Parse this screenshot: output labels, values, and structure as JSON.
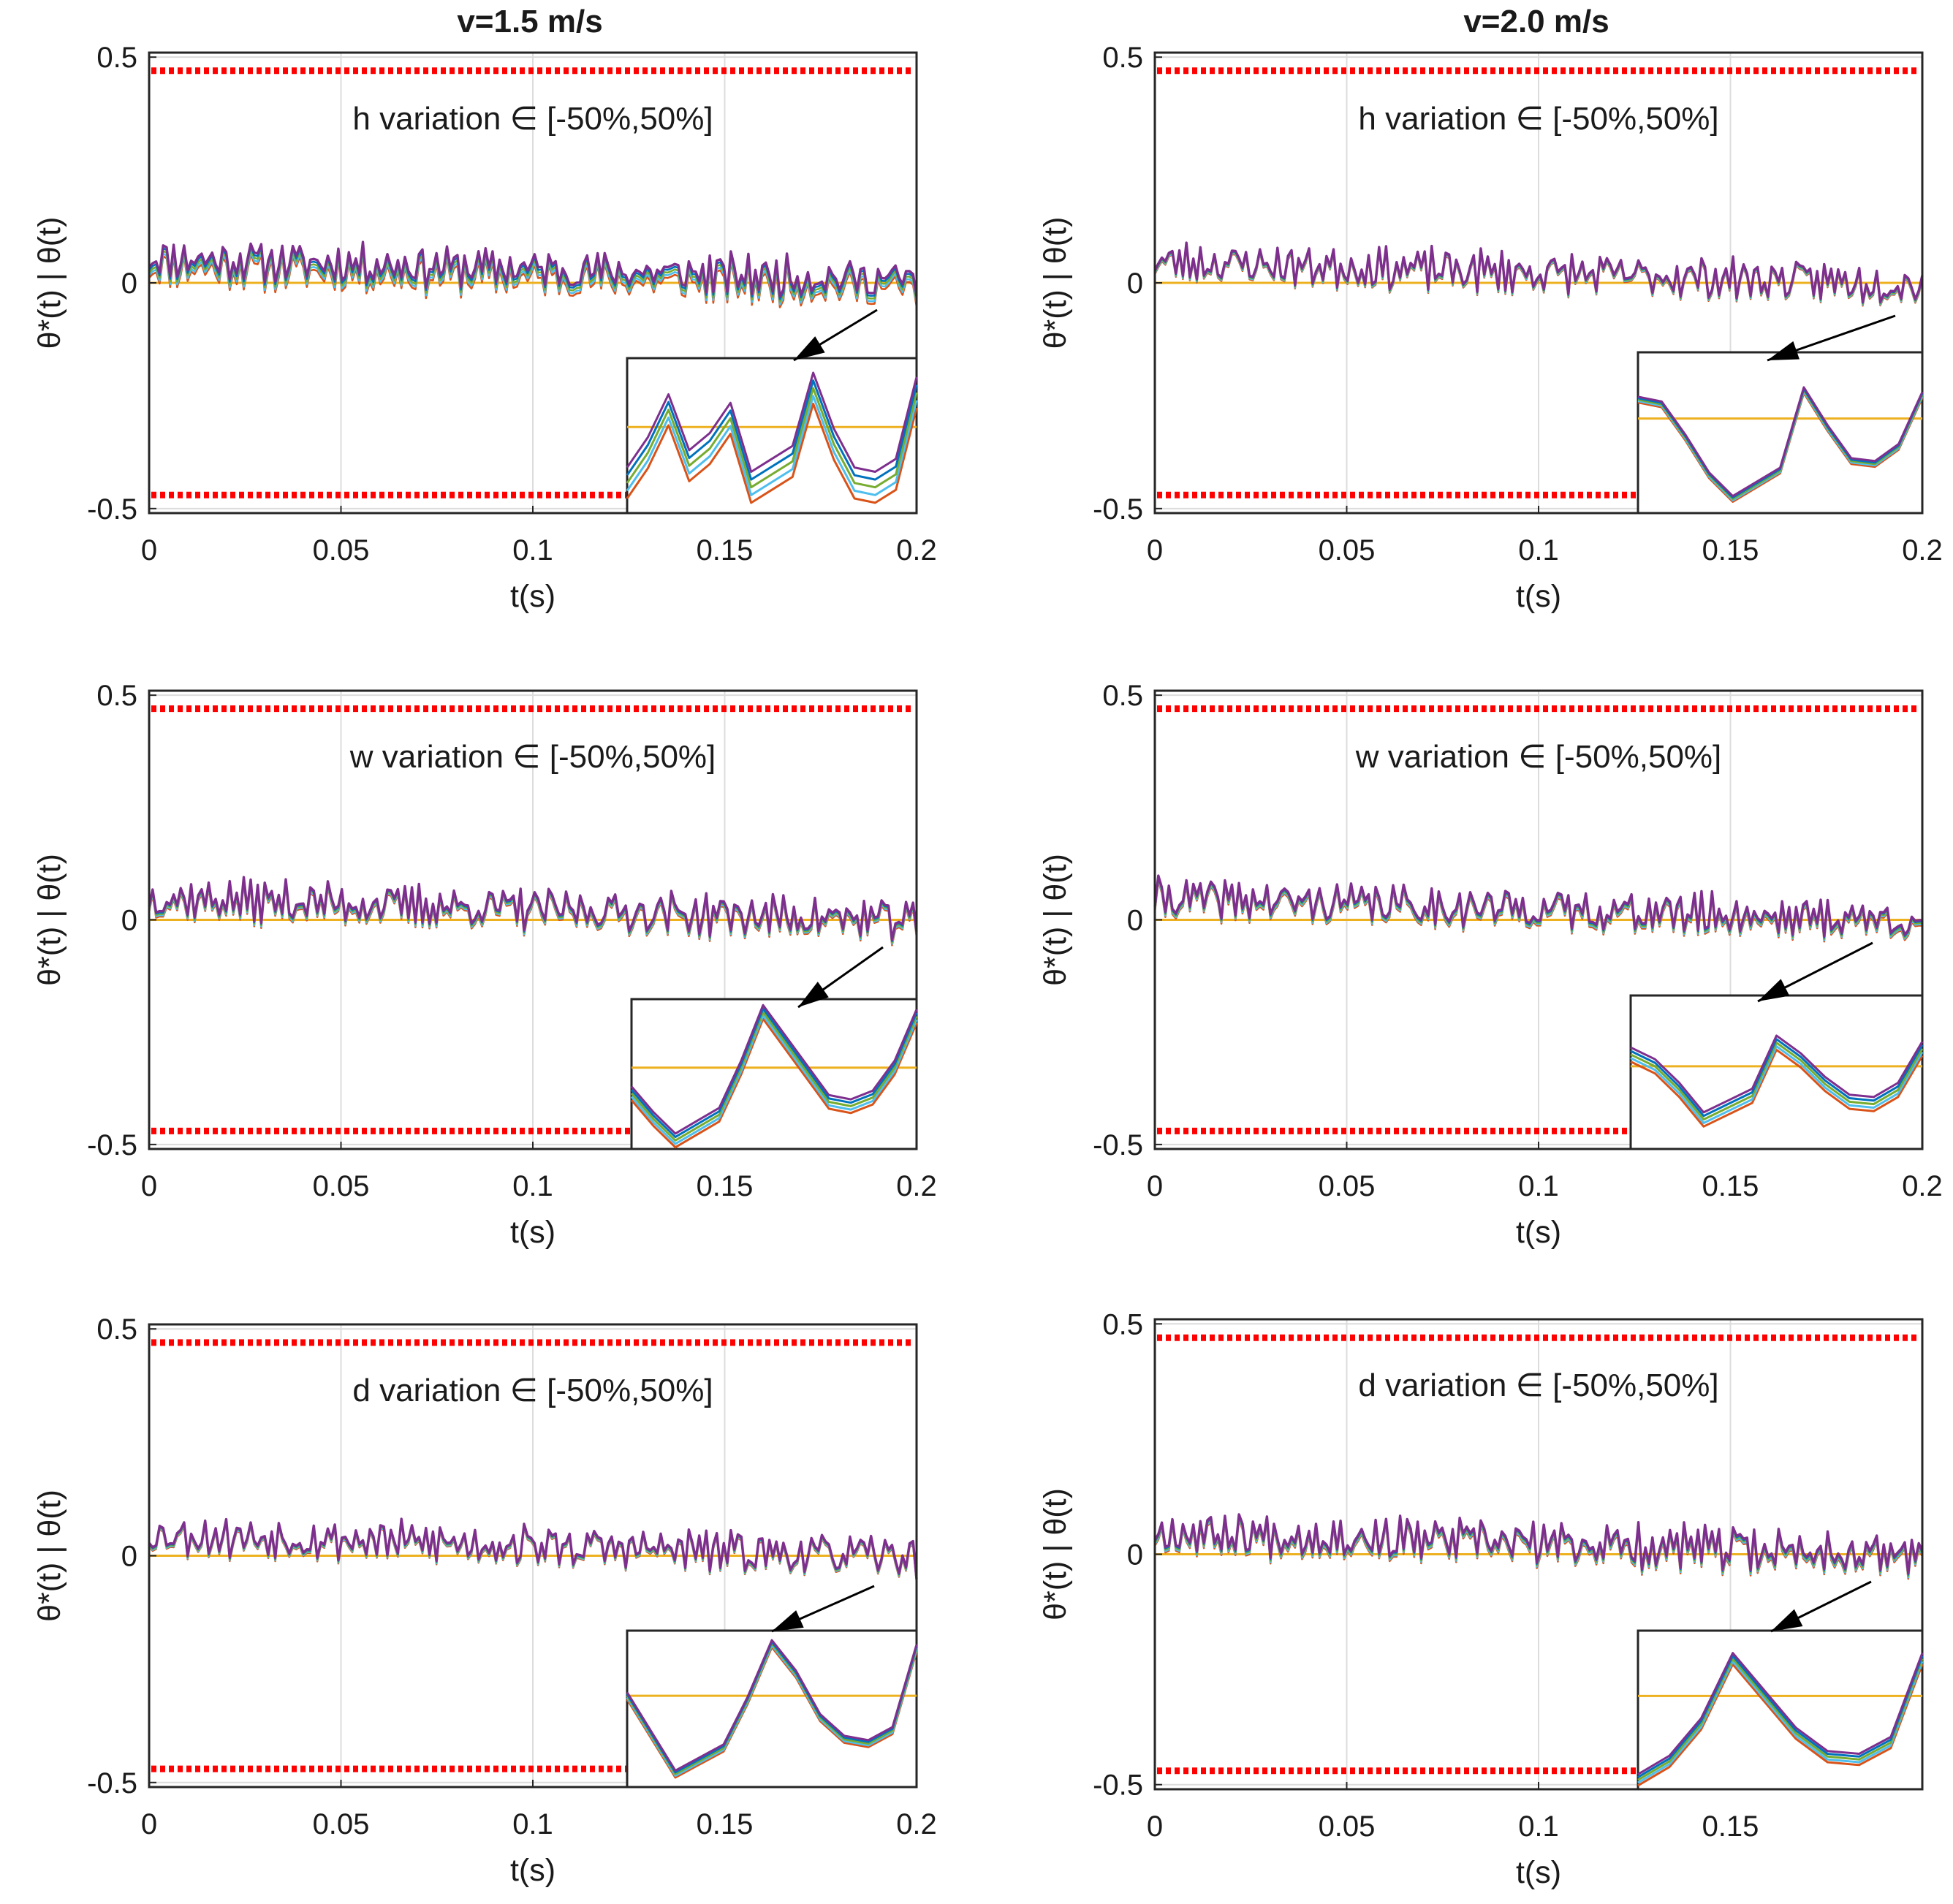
{
  "figure": {
    "column_titles": [
      "v=1.5 m/s",
      "v=2.0 m/s"
    ],
    "colors": {
      "limit": "#ff0000",
      "reference": "#edb120",
      "grid": "#dcdcdc",
      "axes": "#262626",
      "arrow": "#000000",
      "series": [
        "#d95319",
        "#4dbeee",
        "#77ac30",
        "#0072bd",
        "#7e2f8e"
      ]
    }
  },
  "chart_data": [
    {
      "type": "line",
      "panel": "v1.5-h",
      "column": "v=1.5 m/s",
      "annotation": "h variation ∈ [-50%,50%]",
      "xlabel": "t(s)",
      "ylabel": "θ*(t) | θ(t)",
      "xlim": [
        0,
        0.2
      ],
      "ylim": [
        -0.51,
        0.51
      ],
      "xticks": [
        0,
        0.05,
        0.1,
        0.15,
        0.2
      ],
      "xtick_labels": [
        "0",
        "0.05",
        "0.1",
        "0.15",
        "0.2"
      ],
      "yticks": [
        -0.5,
        0,
        0.5
      ],
      "ytick_labels": [
        "-0.5",
        "0",
        "0.5"
      ],
      "limits": [
        0.47,
        -0.47
      ],
      "reference": 0,
      "signal_seed": 11,
      "spread": 0.006,
      "inset": {
        "y": [
          -0.055,
          -0.02,
          0.03,
          -0.035,
          -0.015,
          0.02,
          -0.06,
          -0.045,
          -0.03,
          0.055,
          -0.01,
          -0.055,
          -0.06,
          -0.045,
          0.05
        ],
        "ref": 0.01,
        "spread": 0.009,
        "ylim": [
          -0.09,
          0.09
        ]
      }
    },
    {
      "type": "line",
      "panel": "v2.0-h",
      "column": "v=2.0 m/s",
      "annotation": "h variation ∈ [-50%,50%]",
      "xlabel": "t(s)",
      "ylabel": "θ*(t) | θ(t)",
      "xlim": [
        0,
        0.2
      ],
      "ylim": [
        -0.51,
        0.51
      ],
      "xticks": [
        0,
        0.05,
        0.1,
        0.15,
        0.2
      ],
      "xtick_labels": [
        "0",
        "0.05",
        "0.1",
        "0.15",
        "0.2"
      ],
      "yticks": [
        -0.5,
        0,
        0.5
      ],
      "ytick_labels": [
        "-0.5",
        "0",
        "0.5"
      ],
      "limits": [
        0.47,
        -0.47
      ],
      "reference": 0,
      "signal_seed": 23,
      "spread": 0.002,
      "inset": {
        "y": [
          0.02,
          0.015,
          -0.02,
          -0.06,
          -0.085,
          -0.07,
          -0.055,
          0.03,
          -0.01,
          -0.045,
          -0.048,
          -0.03,
          0.025
        ],
        "ref": 0.0,
        "spread": 0.0015,
        "ylim": [
          -0.1,
          0.07
        ]
      }
    },
    {
      "type": "line",
      "panel": "v1.5-w",
      "column": "v=1.5 m/s",
      "annotation": "w variation ∈ [-50%,50%]",
      "xlabel": "t(s)",
      "ylabel": "θ*(t) | θ(t)",
      "xlim": [
        0,
        0.2
      ],
      "ylim": [
        -0.51,
        0.51
      ],
      "xticks": [
        0,
        0.05,
        0.1,
        0.15,
        0.2
      ],
      "xtick_labels": [
        "0",
        "0.05",
        "0.1",
        "0.15",
        "0.2"
      ],
      "yticks": [
        -0.5,
        0,
        0.5
      ],
      "ytick_labels": [
        "-0.5",
        "0",
        "0.5"
      ],
      "limits": [
        0.47,
        -0.47
      ],
      "reference": 0,
      "signal_seed": 37,
      "spread": 0.003,
      "inset": {
        "y": [
          -0.03,
          -0.06,
          -0.085,
          -0.07,
          -0.055,
          0.0,
          0.065,
          0.03,
          -0.005,
          -0.04,
          -0.045,
          -0.035,
          0.0,
          0.06
        ],
        "ref": 0.0,
        "spread": 0.004,
        "ylim": [
          -0.095,
          0.08
        ]
      }
    },
    {
      "type": "line",
      "panel": "v2.0-w",
      "column": "v=2.0 m/s",
      "annotation": "w variation ∈ [-50%,50%]",
      "xlabel": "t(s)",
      "ylabel": "θ*(t) | θ(t)",
      "xlim": [
        0,
        0.2
      ],
      "ylim": [
        -0.51,
        0.51
      ],
      "xticks": [
        0,
        0.05,
        0.1,
        0.15,
        0.2
      ],
      "xtick_labels": [
        "0",
        "0.05",
        "0.1",
        "0.15",
        "0.2"
      ],
      "yticks": [
        -0.5,
        0,
        0.5
      ],
      "ytick_labels": [
        "-0.5",
        "0",
        "0.5"
      ],
      "limits": [
        0.47,
        -0.47
      ],
      "reference": 0,
      "signal_seed": 41,
      "spread": 0.003,
      "inset": {
        "y": [
          0.01,
          0.0,
          -0.02,
          -0.045,
          -0.035,
          -0.025,
          0.02,
          0.005,
          -0.015,
          -0.03,
          -0.032,
          -0.02,
          0.015
        ],
        "ref": 0.0,
        "spread": 0.003,
        "ylim": [
          -0.07,
          0.06
        ]
      }
    },
    {
      "type": "line",
      "panel": "v1.5-d",
      "column": "v=1.5 m/s",
      "annotation": "d variation ∈ [-50%,50%]",
      "xlabel": "t(s)",
      "ylabel": "θ*(t) | θ(t)",
      "xlim": [
        0,
        0.2
      ],
      "ylim": [
        -0.51,
        0.51
      ],
      "xticks": [
        0,
        0.05,
        0.1,
        0.15,
        0.2
      ],
      "xtick_labels": [
        "0",
        "0.05",
        "0.1",
        "0.15",
        "0.2"
      ],
      "yticks": [
        -0.5,
        0,
        0.5
      ],
      "ytick_labels": [
        "-0.5",
        "0",
        "0.5"
      ],
      "limits": [
        0.47,
        -0.47
      ],
      "reference": 0,
      "signal_seed": 53,
      "spread": 0.002,
      "inset": {
        "y": [
          0.005,
          -0.04,
          -0.085,
          -0.07,
          -0.055,
          0.0,
          0.065,
          0.03,
          -0.02,
          -0.045,
          -0.05,
          -0.035,
          0.06
        ],
        "ref": 0.005,
        "spread": 0.002,
        "ylim": [
          -0.1,
          0.08
        ]
      }
    },
    {
      "type": "line",
      "panel": "v2.0-d",
      "column": "v=2.0 m/s",
      "annotation": "d variation ∈ [-50%,50%]",
      "xlabel": "t(s)",
      "ylabel": "θ*(t) | θ(t)",
      "xlim": [
        0,
        0.2
      ],
      "ylim": [
        -0.51,
        0.51
      ],
      "xticks": [
        0,
        0.05,
        0.1,
        0.15
      ],
      "xtick_labels": [
        "0",
        "0.05",
        "0.1",
        "0.15"
      ],
      "yticks": [
        -0.5,
        0,
        0.5
      ],
      "ytick_labels": [
        "-0.5",
        "0",
        "0.5"
      ],
      "limits": [
        0.47,
        -0.47
      ],
      "reference": 0,
      "signal_seed": 67,
      "spread": 0.003,
      "inset": {
        "y": [
          -0.09,
          -0.07,
          -0.03,
          0.04,
          0.0,
          -0.04,
          -0.065,
          -0.068,
          -0.05,
          0.04
        ],
        "ref": 0.0,
        "spread": 0.003,
        "ylim": [
          -0.1,
          0.07
        ]
      }
    }
  ]
}
